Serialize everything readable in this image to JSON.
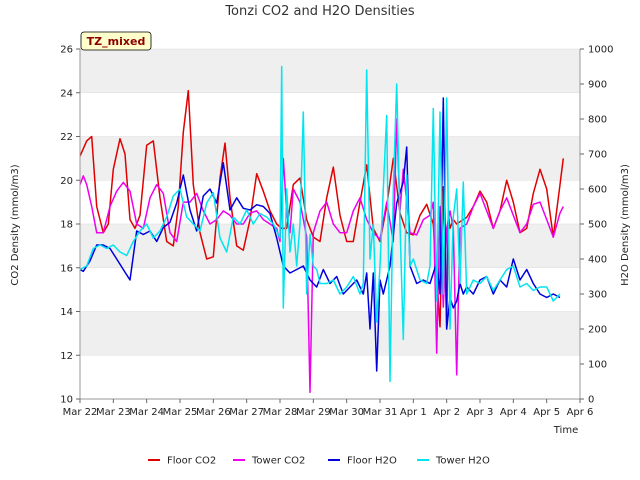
{
  "chart_data": {
    "type": "line",
    "title": "Tonzi CO2 and H2O Densities",
    "xlabel": "Time",
    "ylabel": "CO2 Density (mmol/m3)",
    "y2label": "H2O Density (mmol/m3)",
    "badge": "TZ_mixed",
    "ylim": [
      10,
      26
    ],
    "y2lim": [
      0,
      1000
    ],
    "xlim": [
      0,
      15
    ],
    "yticks": [
      10,
      12,
      14,
      16,
      18,
      20,
      22,
      24,
      26
    ],
    "y2ticks": [
      0,
      100,
      200,
      300,
      400,
      500,
      600,
      700,
      800,
      900,
      1000
    ],
    "xtick_labels": [
      "Mar 22",
      "Mar 23",
      "Mar 24",
      "Mar 25",
      "Mar 26",
      "Mar 27",
      "Mar 28",
      "Mar 29",
      "Mar 30",
      "Mar 31",
      "Apr 1",
      "Apr 2",
      "Apr 3",
      "Apr 4",
      "Apr 5",
      "Apr 6"
    ],
    "band_color": "#efefef",
    "legend_position": "bottom",
    "series": [
      {
        "name": "Floor CO2",
        "axis": "left",
        "color": "#e00000",
        "x": [
          0.0,
          0.2,
          0.35,
          0.5,
          0.7,
          0.85,
          1.0,
          1.2,
          1.35,
          1.5,
          1.65,
          1.8,
          2.0,
          2.2,
          2.4,
          2.6,
          2.8,
          2.95,
          3.1,
          3.25,
          3.4,
          3.6,
          3.8,
          4.0,
          4.2,
          4.35,
          4.5,
          4.7,
          4.9,
          5.1,
          5.3,
          5.5,
          5.7,
          5.9,
          6.05,
          6.2,
          6.4,
          6.6,
          6.8,
          7.0,
          7.2,
          7.4,
          7.6,
          7.8,
          8.0,
          8.2,
          8.4,
          8.6,
          8.8,
          9.0,
          9.2,
          9.4,
          9.6,
          9.8,
          10.0,
          10.2,
          10.4,
          10.6,
          10.8,
          10.9,
          11.0,
          11.05,
          11.1,
          11.2,
          11.3,
          11.4,
          11.5,
          11.6,
          11.8,
          12.0,
          12.2,
          12.4,
          12.6,
          12.8,
          13.0,
          13.2,
          13.4,
          13.6,
          13.8,
          14.0,
          14.2,
          14.4,
          14.5
        ],
        "y": [
          21.1,
          21.8,
          22.0,
          18.8,
          17.6,
          18.0,
          20.5,
          21.9,
          21.2,
          18.2,
          17.8,
          18.4,
          21.6,
          21.8,
          19.2,
          17.2,
          17.0,
          18.8,
          22.2,
          24.1,
          19.8,
          17.6,
          16.4,
          16.5,
          20.1,
          21.7,
          19.2,
          17.0,
          16.8,
          18.2,
          20.3,
          19.5,
          18.6,
          18.0,
          17.8,
          17.8,
          19.8,
          20.1,
          18.2,
          17.4,
          17.2,
          19.2,
          20.6,
          18.4,
          17.2,
          17.2,
          19.0,
          20.7,
          17.8,
          17.2,
          18.8,
          21.0,
          18.5,
          17.6,
          17.5,
          18.4,
          18.9,
          18.0,
          13.3,
          19.7,
          13.2,
          18.5,
          17.8,
          18.2,
          18.0,
          18.1,
          18.2,
          18.3,
          18.8,
          19.5,
          19.0,
          17.8,
          18.6,
          20.0,
          19.0,
          17.6,
          17.8,
          19.4,
          20.5,
          19.6,
          17.4,
          19.8,
          21.0
        ]
      },
      {
        "name": "Tower CO2",
        "axis": "left",
        "color": "#ee00ee",
        "x": [
          0.0,
          0.1,
          0.2,
          0.35,
          0.5,
          0.7,
          0.9,
          1.1,
          1.3,
          1.5,
          1.7,
          1.9,
          2.1,
          2.3,
          2.5,
          2.7,
          2.9,
          3.1,
          3.3,
          3.5,
          3.7,
          3.9,
          4.1,
          4.3,
          4.5,
          4.7,
          4.9,
          5.1,
          5.3,
          5.5,
          5.7,
          5.9,
          6.0,
          6.1,
          6.2,
          6.3,
          6.4,
          6.6,
          6.8,
          6.9,
          7.0,
          7.2,
          7.4,
          7.6,
          7.8,
          8.0,
          8.2,
          8.4,
          8.6,
          8.8,
          9.0,
          9.2,
          9.4,
          9.5,
          9.6,
          9.7,
          9.9,
          10.1,
          10.3,
          10.5,
          10.6,
          10.7,
          10.8,
          10.9,
          11.0,
          11.1,
          11.2,
          11.3,
          11.4,
          11.6,
          11.8,
          12.0,
          12.2,
          12.4,
          12.6,
          12.8,
          13.0,
          13.2,
          13.4,
          13.6,
          13.8,
          14.0,
          14.2,
          14.4,
          14.5
        ],
        "y": [
          19.8,
          20.2,
          19.8,
          18.8,
          17.6,
          17.6,
          18.8,
          19.5,
          19.9,
          19.5,
          18.0,
          17.8,
          19.2,
          19.8,
          19.4,
          17.6,
          17.2,
          19.0,
          19.0,
          19.4,
          18.6,
          18.0,
          18.2,
          18.6,
          18.4,
          18.0,
          18.0,
          18.5,
          18.6,
          18.2,
          18.0,
          17.8,
          17.2,
          21.0,
          18.5,
          17.6,
          19.6,
          19.0,
          17.4,
          10.3,
          17.6,
          18.6,
          19.0,
          18.0,
          17.6,
          17.6,
          18.6,
          19.2,
          18.2,
          17.6,
          17.3,
          19.0,
          17.2,
          22.8,
          18.6,
          20.5,
          17.6,
          17.5,
          18.2,
          18.4,
          19.0,
          12.1,
          18.8,
          14.2,
          17.8,
          18.6,
          17.8,
          11.1,
          17.8,
          18.0,
          18.8,
          19.4,
          18.6,
          17.8,
          18.6,
          19.2,
          18.4,
          17.6,
          18.0,
          18.9,
          19.0,
          18.2,
          17.4,
          18.5,
          18.8
        ]
      },
      {
        "name": "Floor H2O",
        "axis": "right",
        "color": "#0000dd",
        "x": [
          0.0,
          0.1,
          0.3,
          0.5,
          0.7,
          0.9,
          1.1,
          1.3,
          1.5,
          1.7,
          1.9,
          2.1,
          2.3,
          2.5,
          2.7,
          2.9,
          3.1,
          3.3,
          3.5,
          3.7,
          3.9,
          4.1,
          4.3,
          4.5,
          4.7,
          4.9,
          5.1,
          5.3,
          5.5,
          5.7,
          5.9,
          6.1,
          6.3,
          6.5,
          6.7,
          6.9,
          7.1,
          7.3,
          7.5,
          7.7,
          7.9,
          8.1,
          8.3,
          8.5,
          8.6,
          8.7,
          8.8,
          8.9,
          9.0,
          9.1,
          9.3,
          9.5,
          9.7,
          9.8,
          9.9,
          10.1,
          10.3,
          10.5,
          10.7,
          10.8,
          10.9,
          11.0,
          11.1,
          11.2,
          11.3,
          11.4,
          11.5,
          11.6,
          11.8,
          12.0,
          12.2,
          12.4,
          12.6,
          12.8,
          13.0,
          13.2,
          13.4,
          13.6,
          13.8,
          14.0,
          14.2,
          14.4
        ],
        "y": [
          370,
          365,
          395,
          440,
          440,
          430,
          400,
          370,
          340,
          480,
          470,
          480,
          450,
          490,
          505,
          560,
          640,
          540,
          480,
          580,
          600,
          560,
          675,
          540,
          575,
          545,
          540,
          555,
          550,
          530,
          460,
          380,
          360,
          370,
          380,
          340,
          320,
          370,
          330,
          350,
          300,
          320,
          340,
          300,
          360,
          200,
          360,
          80,
          340,
          300,
          380,
          560,
          620,
          720,
          380,
          330,
          340,
          330,
          390,
          300,
          860,
          200,
          290,
          260,
          280,
          330,
          300,
          320,
          300,
          340,
          350,
          300,
          340,
          320,
          400,
          340,
          370,
          330,
          300,
          290,
          300,
          290
        ]
      },
      {
        "name": "Tower H2O",
        "axis": "right",
        "color": "#00e5ee",
        "x": [
          0.0,
          0.2,
          0.4,
          0.6,
          0.8,
          1.0,
          1.2,
          1.4,
          1.6,
          1.8,
          2.0,
          2.2,
          2.4,
          2.6,
          2.8,
          3.0,
          3.2,
          3.4,
          3.6,
          3.8,
          4.0,
          4.2,
          4.4,
          4.6,
          4.8,
          5.0,
          5.2,
          5.4,
          5.6,
          5.8,
          6.0,
          6.05,
          6.1,
          6.2,
          6.3,
          6.4,
          6.5,
          6.6,
          6.7,
          6.8,
          6.9,
          7.0,
          7.1,
          7.2,
          7.4,
          7.6,
          7.8,
          8.0,
          8.2,
          8.4,
          8.5,
          8.6,
          8.7,
          8.8,
          8.9,
          9.0,
          9.1,
          9.2,
          9.3,
          9.4,
          9.5,
          9.6,
          9.7,
          9.8,
          9.9,
          10.0,
          10.2,
          10.4,
          10.5,
          10.6,
          10.7,
          10.8,
          10.9,
          11.0,
          11.1,
          11.2,
          11.3,
          11.4,
          11.5,
          11.6,
          11.8,
          12.0,
          12.2,
          12.4,
          12.6,
          12.8,
          13.0,
          13.2,
          13.4,
          13.6,
          13.8,
          14.0,
          14.2,
          14.4
        ],
        "y": [
          370,
          380,
          430,
          440,
          430,
          440,
          420,
          410,
          450,
          480,
          500,
          460,
          480,
          520,
          580,
          600,
          520,
          500,
          480,
          560,
          590,
          460,
          420,
          520,
          500,
          540,
          500,
          530,
          520,
          500,
          460,
          950,
          260,
          600,
          420,
          500,
          380,
          500,
          820,
          300,
          470,
          380,
          370,
          330,
          330,
          340,
          300,
          320,
          350,
          300,
          330,
          940,
          400,
          500,
          220,
          380,
          600,
          810,
          50,
          600,
          900,
          500,
          170,
          640,
          380,
          400,
          340,
          330,
          380,
          830,
          280,
          820,
          300,
          860,
          200,
          520,
          600,
          330,
          620,
          300,
          340,
          330,
          350,
          310,
          340,
          370,
          380,
          320,
          330,
          310,
          320,
          320,
          280,
          300
        ]
      }
    ]
  }
}
